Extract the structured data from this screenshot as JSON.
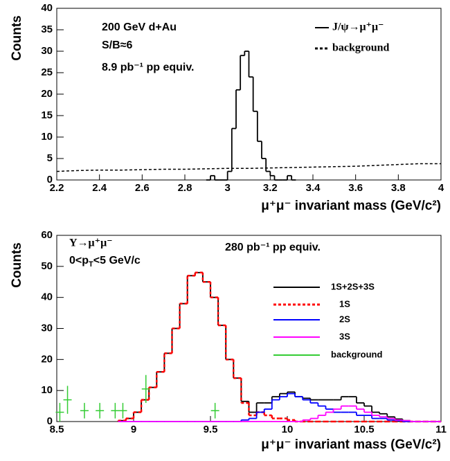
{
  "chart_data": [
    {
      "type": "histogram",
      "ylabel": "Counts",
      "xlabel": "μ⁺μ⁻ invariant mass (GeV/c²)",
      "annotations": [
        "200 GeV d+Au",
        "S/B≈6",
        "8.9 pb⁻¹ pp equiv."
      ],
      "xlim": [
        2.2,
        4
      ],
      "xticks": [
        2.2,
        2.4,
        2.6,
        2.8,
        3,
        3.2,
        3.4,
        3.6,
        3.8,
        4
      ],
      "ylim": [
        0,
        40
      ],
      "yticks": [
        0,
        5,
        10,
        15,
        20,
        25,
        30,
        35,
        40
      ],
      "bins": [
        2.9,
        2.92,
        2.94,
        2.96,
        2.98,
        3.0,
        3.02,
        3.04,
        3.06,
        3.08,
        3.1,
        3.12,
        3.14,
        3.16,
        3.18,
        3.2,
        3.22,
        3.24,
        3.26,
        3.28,
        3.3,
        3.32
      ],
      "series": [
        {
          "name": "J/ψ→μ⁺μ⁻",
          "color": "#000000",
          "style": "solid",
          "values": [
            0,
            1,
            0,
            0,
            0,
            2,
            12,
            21,
            29,
            30,
            24,
            16,
            9,
            5,
            2,
            1,
            0,
            0,
            0,
            1,
            0
          ]
        },
        {
          "name": "background",
          "color": "#000000",
          "style": "dashed",
          "x": [
            2.2,
            2.3,
            2.4,
            2.5,
            2.6,
            2.7,
            2.8,
            2.9,
            3.0,
            3.1,
            3.2,
            3.3,
            3.4,
            3.5,
            3.6,
            3.7,
            3.8,
            3.9,
            4.0
          ],
          "values": [
            2,
            2.2,
            2.3,
            2.3,
            2.4,
            2.5,
            2.5,
            2.6,
            2.7,
            2.7,
            2.8,
            2.9,
            3,
            3.1,
            3.2,
            3.4,
            3.6,
            3.8,
            3.8
          ]
        }
      ]
    },
    {
      "type": "histogram",
      "ylabel": "Counts",
      "xlabel": "μ⁺μ⁻ invariant mass (GeV/c²)",
      "annotations": [
        "Υ→μ⁺μ⁻",
        [
          "0<p",
          "T",
          "<5 GeV/c"
        ],
        "280 pb⁻¹ pp equiv."
      ],
      "xlim": [
        8.5,
        11
      ],
      "xticks": [
        8.5,
        9,
        9.5,
        10,
        10.5,
        11
      ],
      "ylim": [
        0,
        60
      ],
      "yticks": [
        0,
        10,
        20,
        30,
        40,
        50,
        60
      ],
      "bins": [
        8.9,
        8.95,
        9.0,
        9.05,
        9.1,
        9.15,
        9.2,
        9.25,
        9.3,
        9.35,
        9.4,
        9.45,
        9.5,
        9.55,
        9.6,
        9.65,
        9.7,
        9.75,
        9.8,
        9.85,
        9.9,
        9.95,
        10.0,
        10.05,
        10.1,
        10.15,
        10.2,
        10.25,
        10.3,
        10.35,
        10.4,
        10.45,
        10.5,
        10.55,
        10.6,
        10.65,
        10.7,
        10.75,
        10.8,
        10.85,
        10.9,
        10.95,
        11.0
      ],
      "series": [
        {
          "name": "1S+2S+3S",
          "color": "#000000",
          "style": "solid",
          "values": [
            0.3,
            1,
            3,
            7,
            11,
            16,
            22,
            30,
            38,
            47,
            48,
            45,
            40,
            31,
            20,
            14,
            6.5,
            3,
            6,
            6,
            8,
            9,
            9.5,
            8,
            7.5,
            7,
            7,
            7,
            7,
            8,
            8,
            6,
            5,
            3,
            2.5,
            1.5,
            0.8,
            0.3,
            0,
            0,
            0,
            0
          ]
        },
        {
          "name": "1S",
          "color": "#ff0000",
          "style": "dashed",
          "values": [
            0.3,
            1,
            3,
            7,
            11,
            16,
            22,
            30,
            38,
            47,
            48,
            45,
            40,
            31,
            20,
            14,
            6,
            2,
            3,
            2,
            1,
            1,
            0.5,
            0,
            0,
            0,
            0,
            0,
            0,
            0,
            0,
            0,
            0,
            0,
            0,
            0,
            0,
            0,
            0,
            0,
            0,
            0
          ]
        },
        {
          "name": "2S",
          "color": "#0000ff",
          "style": "solid",
          "values": [
            0,
            0,
            0,
            0,
            0,
            0,
            0,
            0,
            0,
            0,
            0,
            0,
            0,
            0,
            0,
            0,
            0.5,
            1,
            3,
            4,
            7,
            8,
            9,
            8,
            7,
            6,
            5,
            4,
            3,
            3,
            3,
            2,
            2,
            1,
            1,
            0.5,
            0.3,
            0,
            0,
            0,
            0,
            0
          ]
        },
        {
          "name": "3S",
          "color": "#ff00ff",
          "style": "solid",
          "values": [
            0,
            0,
            0,
            0,
            0,
            0,
            0,
            0,
            0,
            0,
            0,
            0,
            0,
            0,
            0,
            0,
            0,
            0,
            0,
            0,
            0,
            0,
            0,
            0,
            0.5,
            1,
            2,
            3,
            4,
            5,
            5,
            4,
            3,
            2,
            1.5,
            1,
            0.5,
            0.3,
            0,
            0,
            0,
            0
          ]
        },
        {
          "name": "background",
          "color": "#33cc33",
          "style": "points",
          "x": [
            8.52,
            8.57,
            8.68,
            8.78,
            8.88,
            8.93,
            9.08,
            9.53
          ],
          "values": [
            3,
            7,
            3.5,
            3.5,
            3.5,
            3.5,
            10.5,
            3.5
          ],
          "errors": [
            3,
            4.5,
            2.5,
            2.5,
            2.5,
            2.5,
            4.5,
            2.5
          ]
        }
      ]
    }
  ]
}
